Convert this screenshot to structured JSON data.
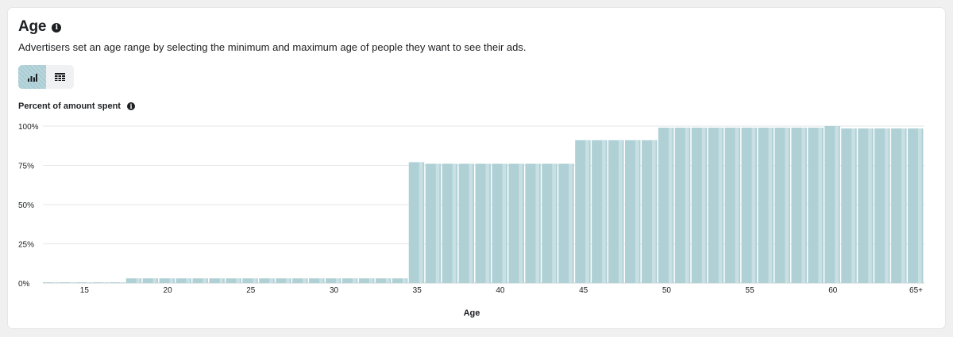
{
  "section": {
    "title": "Age",
    "description": "Advertisers set an age range by selecting the minimum and maximum age of people they want to see their ads."
  },
  "view_toggle": {
    "chart_icon": "bar-chart-icon",
    "table_icon": "table-icon",
    "active": "chart"
  },
  "chart_data": {
    "type": "bar",
    "title": "Percent of amount spent",
    "xlabel": "Age",
    "ylabel": "",
    "ylim": [
      0,
      100
    ],
    "yticks": [
      "0%",
      "25%",
      "50%",
      "75%",
      "100%"
    ],
    "xticks": [
      "15",
      "20",
      "25",
      "30",
      "35",
      "40",
      "45",
      "50",
      "55",
      "60",
      "65+"
    ],
    "grid": true,
    "color": "#afd0d5",
    "stripe_color": "#c8e0e3",
    "categories": [
      "13",
      "14",
      "15",
      "16",
      "17",
      "18",
      "19",
      "20",
      "21",
      "22",
      "23",
      "24",
      "25",
      "26",
      "27",
      "28",
      "29",
      "30",
      "31",
      "32",
      "33",
      "34",
      "35",
      "36",
      "37",
      "38",
      "39",
      "40",
      "41",
      "42",
      "43",
      "44",
      "45",
      "46",
      "47",
      "48",
      "49",
      "50",
      "51",
      "52",
      "53",
      "54",
      "55",
      "56",
      "57",
      "58",
      "59",
      "60",
      "61",
      "62",
      "63",
      "64",
      "65+"
    ],
    "values": [
      0.5,
      0.5,
      0.5,
      0.5,
      0.5,
      3,
      3,
      3,
      3,
      3,
      3,
      3,
      3,
      3,
      3,
      3,
      3,
      3,
      3,
      3,
      3,
      3,
      77,
      76,
      76,
      76,
      76,
      76,
      76,
      76,
      76,
      76,
      91,
      91,
      91,
      91,
      91,
      99,
      99,
      99,
      99,
      99,
      99,
      99,
      99,
      99,
      99,
      100,
      98.5,
      98.5,
      98.5,
      98.5,
      98.5
    ]
  }
}
